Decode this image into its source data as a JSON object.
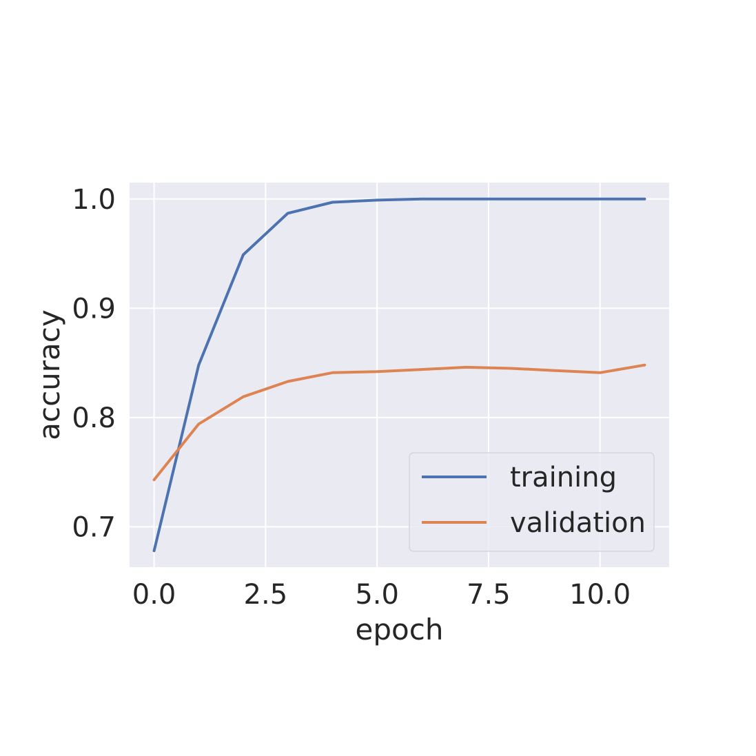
{
  "chart_data": {
    "type": "line",
    "title": "",
    "xlabel": "epoch",
    "ylabel": "accuracy",
    "xlim": [
      -0.55,
      11.55
    ],
    "ylim": [
      0.663,
      1.015
    ],
    "xticks": [
      0.0,
      2.5,
      5.0,
      7.5,
      10.0
    ],
    "xtick_labels": [
      "0.0",
      "2.5",
      "5.0",
      "7.5",
      "10.0"
    ],
    "yticks": [
      0.7,
      0.8,
      0.9,
      1.0
    ],
    "ytick_labels": [
      "0.7",
      "0.8",
      "0.9",
      "1.0"
    ],
    "grid": true,
    "background": "#EAEAF2",
    "legend_position": "lower-right",
    "x": [
      0,
      1,
      2,
      3,
      4,
      5,
      6,
      7,
      8,
      9,
      10,
      11
    ],
    "series": [
      {
        "name": "training",
        "color": "#4C72B0",
        "values": [
          0.678,
          0.848,
          0.949,
          0.987,
          0.997,
          0.999,
          1.0,
          1.0,
          1.0,
          1.0,
          1.0,
          1.0
        ]
      },
      {
        "name": "validation",
        "color": "#DD8452",
        "values": [
          0.743,
          0.794,
          0.819,
          0.833,
          0.841,
          0.842,
          0.844,
          0.846,
          0.845,
          0.843,
          0.841,
          0.848
        ]
      }
    ]
  }
}
